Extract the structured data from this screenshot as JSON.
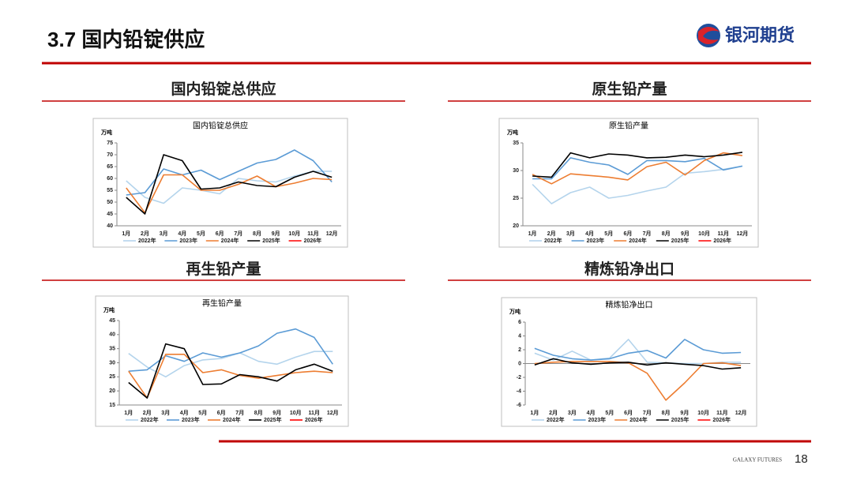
{
  "header": {
    "title": "3.7 国内铅锭供应",
    "logo": "银河期货"
  },
  "panels": [
    "国内铅锭总供应",
    "原生铅产量",
    "再生铅产量",
    "精炼铅净出口"
  ],
  "footer": {
    "brand": "GALAXY FUTURES",
    "page": 18
  },
  "chart_data": [
    {
      "type": "line",
      "title": "国内铅锭总供应",
      "y_unit": "万吨",
      "categories": [
        "1月",
        "2月",
        "3月",
        "4月",
        "5月",
        "6月",
        "7月",
        "8月",
        "9月",
        "10月",
        "11月",
        "12月"
      ],
      "ylim": [
        40,
        75
      ],
      "yticks": [
        40,
        45,
        50,
        55,
        60,
        65,
        70,
        75
      ],
      "series": [
        {
          "name": "2022年",
          "color": "#b4d4ec",
          "values": [
            59,
            52,
            49.5,
            56,
            55,
            53.5,
            60,
            59,
            58.5,
            61,
            63,
            63
          ]
        },
        {
          "name": "2023年",
          "color": "#5b9bd5",
          "values": [
            53,
            54,
            64,
            61.5,
            63.5,
            59.5,
            63,
            66.5,
            68,
            72,
            67.5,
            58.5
          ]
        },
        {
          "name": "2024年",
          "color": "#ed7d31",
          "values": [
            56,
            45.5,
            61.5,
            61.5,
            55,
            55,
            57.5,
            61,
            56.5,
            58,
            60,
            59.5
          ]
        },
        {
          "name": "2025年",
          "color": "#000000",
          "values": [
            52,
            45,
            70,
            67.5,
            55.5,
            56,
            58.5,
            57,
            56.5,
            60.5,
            63,
            60.5
          ]
        },
        {
          "name": "2026年",
          "color": "#ff0000",
          "values": [
            null,
            null,
            null,
            null,
            null,
            null,
            null,
            null,
            null,
            null,
            null,
            null
          ]
        }
      ]
    },
    {
      "type": "line",
      "title": "原生铅产量",
      "y_unit": "万吨",
      "categories": [
        "1月",
        "2月",
        "3月",
        "4月",
        "5月",
        "6月",
        "7月",
        "8月",
        "9月",
        "10月",
        "11月",
        "12月"
      ],
      "ylim": [
        20,
        35
      ],
      "yticks": [
        20,
        25,
        30,
        35
      ],
      "series": [
        {
          "name": "2022年",
          "color": "#b4d4ec",
          "values": [
            27.5,
            24,
            26,
            27,
            25,
            25.5,
            26.3,
            27,
            29.5,
            29.8,
            30.2,
            30.8
          ]
        },
        {
          "name": "2023年",
          "color": "#5b9bd5",
          "values": [
            28.5,
            28.5,
            32.3,
            31.5,
            31,
            29.3,
            31.8,
            31.8,
            31.6,
            32.2,
            30.1,
            30.8
          ]
        },
        {
          "name": "2024年",
          "color": "#ed7d31",
          "values": [
            29.3,
            27.6,
            29.4,
            29.1,
            28.8,
            28.3,
            30.7,
            31.5,
            29.2,
            31.8,
            33.2,
            32.7
          ]
        },
        {
          "name": "2025年",
          "color": "#000000",
          "values": [
            29,
            28.8,
            33.2,
            32.3,
            33,
            32.8,
            32.3,
            32.4,
            32.8,
            32.5,
            32.8,
            33.3
          ]
        },
        {
          "name": "2026年",
          "color": "#ff0000",
          "values": [
            null,
            null,
            null,
            null,
            null,
            null,
            null,
            null,
            null,
            null,
            null,
            null
          ]
        }
      ]
    },
    {
      "type": "line",
      "title": "再生铅产量",
      "y_unit": "万吨",
      "categories": [
        "1月",
        "2月",
        "3月",
        "4月",
        "5月",
        "6月",
        "7月",
        "8月",
        "9月",
        "10月",
        "11月",
        "12月"
      ],
      "ylim": [
        15,
        45
      ],
      "yticks": [
        15,
        20,
        25,
        30,
        35,
        40,
        45
      ],
      "series": [
        {
          "name": "2022年",
          "color": "#b4d4ec",
          "values": [
            33.3,
            28.5,
            25,
            29,
            31,
            31.5,
            33.5,
            30.5,
            29.5,
            32,
            34,
            34
          ]
        },
        {
          "name": "2023年",
          "color": "#5b9bd5",
          "values": [
            27,
            27.5,
            32.5,
            30.5,
            33.5,
            32,
            33.5,
            36,
            40.5,
            42,
            39,
            29.5
          ]
        },
        {
          "name": "2024年",
          "color": "#ed7d31",
          "values": [
            27,
            17.5,
            33,
            33,
            26.5,
            27.5,
            25.5,
            24.5,
            25.5,
            26.5,
            27,
            26.5
          ]
        },
        {
          "name": "2025年",
          "color": "#000000",
          "values": [
            23,
            17.5,
            36.7,
            35,
            22.3,
            22.5,
            25.8,
            25,
            23.5,
            27.5,
            29.5,
            27
          ]
        },
        {
          "name": "2026年",
          "color": "#ff0000",
          "values": [
            null,
            null,
            null,
            null,
            null,
            null,
            null,
            null,
            null,
            null,
            null,
            null
          ]
        }
      ]
    },
    {
      "type": "line",
      "title": "精炼铅净出口",
      "y_unit": "万吨",
      "categories": [
        "1月",
        "2月",
        "3月",
        "4月",
        "5月",
        "6月",
        "7月",
        "8月",
        "9月",
        "10月",
        "11月",
        "12月"
      ],
      "ylim": [
        -6,
        6
      ],
      "yticks": [
        -6,
        -4,
        -2,
        0,
        2,
        4,
        6
      ],
      "series": [
        {
          "name": "2022年",
          "color": "#b4d4ec",
          "values": [
            1.5,
            0.5,
            1.8,
            0.5,
            0.8,
            3.5,
            0.2,
            0.1,
            0,
            0,
            0.2,
            0.2
          ]
        },
        {
          "name": "2023年",
          "color": "#5b9bd5",
          "values": [
            2.2,
            1.2,
            0.7,
            0.5,
            0.7,
            1.5,
            1.9,
            0.8,
            3.5,
            2,
            1.5,
            1.6
          ]
        },
        {
          "name": "2024年",
          "color": "#ed7d31",
          "values": [
            0,
            0.2,
            0.3,
            0.3,
            0.3,
            0.1,
            -1.4,
            -5.3,
            -2.8,
            0,
            0.1,
            -0.3
          ]
        },
        {
          "name": "2025年",
          "color": "#000000",
          "values": [
            -0.2,
            0.7,
            0.1,
            -0.1,
            0.1,
            0.2,
            -0.2,
            0.1,
            -0.1,
            -0.3,
            -0.8,
            -0.6
          ]
        },
        {
          "name": "2026年",
          "color": "#ff0000",
          "values": [
            null,
            null,
            null,
            null,
            null,
            null,
            null,
            null,
            null,
            null,
            null,
            null
          ]
        }
      ]
    }
  ]
}
